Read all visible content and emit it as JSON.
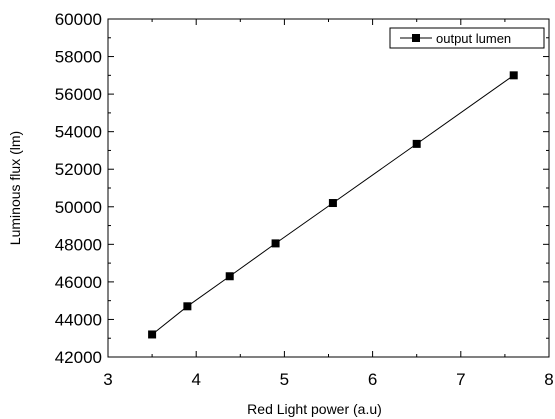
{
  "chart_data": {
    "type": "line",
    "xlabel": "Red Light power (a.u)",
    "ylabel": "Luminous flux (lm)",
    "xlim": [
      3,
      8
    ],
    "ylim": [
      42000,
      60000
    ],
    "x_ticks": [
      3,
      4,
      5,
      6,
      7,
      8
    ],
    "y_ticks": [
      42000,
      44000,
      46000,
      48000,
      50000,
      52000,
      54000,
      56000,
      58000,
      60000
    ],
    "x_tick_labels": [
      "3",
      "4",
      "5",
      "6",
      "7",
      "8"
    ],
    "y_tick_labels": [
      "42000",
      "44000",
      "46000",
      "48000",
      "50000",
      "52000",
      "54000",
      "56000",
      "58000",
      "60000"
    ],
    "grid": false,
    "legend_position": "top-right",
    "series": [
      {
        "name": "output lumen",
        "marker": "square",
        "color": "#000000",
        "x": [
          3.5,
          3.9,
          4.38,
          4.9,
          5.55,
          6.5,
          7.6
        ],
        "y": [
          43200,
          44700,
          46300,
          48050,
          50200,
          53350,
          57000
        ]
      }
    ]
  }
}
